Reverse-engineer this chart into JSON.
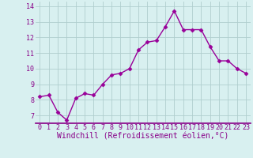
{
  "hours": [
    0,
    1,
    2,
    3,
    4,
    5,
    6,
    7,
    8,
    9,
    10,
    11,
    12,
    13,
    14,
    15,
    16,
    17,
    18,
    19,
    20,
    21,
    22,
    23
  ],
  "windchill": [
    8.2,
    8.3,
    7.2,
    6.7,
    8.1,
    8.4,
    8.3,
    9.0,
    9.6,
    9.7,
    10.0,
    11.2,
    11.7,
    11.8,
    12.7,
    13.7,
    12.5,
    12.5,
    12.5,
    11.4,
    10.5,
    10.5,
    10.0,
    9.7
  ],
  "line_color": "#990099",
  "marker": "D",
  "marker_size": 2.5,
  "bg_color": "#d8f0f0",
  "grid_color": "#b0cece",
  "xlabel": "Windchill (Refroidissement éolien,°C)",
  "ylim": [
    6.5,
    14.3
  ],
  "xlim": [
    -0.5,
    23.5
  ],
  "yticks": [
    7,
    8,
    9,
    10,
    11,
    12,
    13,
    14
  ],
  "xticks": [
    0,
    1,
    2,
    3,
    4,
    5,
    6,
    7,
    8,
    9,
    10,
    11,
    12,
    13,
    14,
    15,
    16,
    17,
    18,
    19,
    20,
    21,
    22,
    23
  ],
  "tick_label_fontsize": 6,
  "xlabel_fontsize": 7,
  "axis_text_color": "#880088",
  "spine_color": "#880088"
}
